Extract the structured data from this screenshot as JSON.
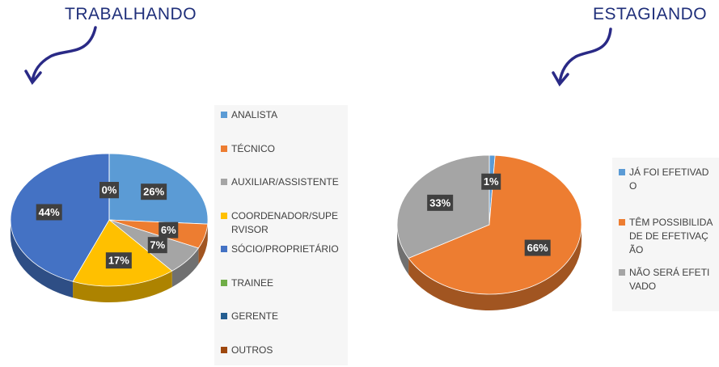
{
  "chart_data": [
    {
      "type": "pie",
      "title": "TRABALHANDO",
      "categories": [
        "ANALISTA",
        "TÉCNICO",
        "AUXILIAR/ASSISTENTE",
        "COORDENADOR/SUPERVISOR",
        "SÓCIO/PROPRIETÁRIO",
        "TRAINEE",
        "GERENTE",
        "OUTROS"
      ],
      "values": [
        26,
        6,
        7,
        17,
        44,
        0,
        0,
        0
      ],
      "value_labels": [
        "26%",
        "6%",
        "7%",
        "17%",
        "44%",
        "0%",
        "0%",
        "0%"
      ],
      "colors": [
        "#5b9bd5",
        "#ed7d31",
        "#a5a5a5",
        "#ffc000",
        "#4472c4",
        "#70ad47",
        "#255e91",
        "#9e480e"
      ]
    },
    {
      "type": "pie",
      "title": "ESTAGIANDO",
      "categories": [
        "JÁ FOI EFETIVADO",
        "TÊM POSSIBILIDADE DE EFETIVAÇÃO",
        "NÃO SERÁ EFETIVADO"
      ],
      "values": [
        1,
        66,
        33
      ],
      "value_labels": [
        "1%",
        "66%",
        "33%"
      ],
      "colors": [
        "#5b9bd5",
        "#ed7d31",
        "#a5a5a5"
      ]
    }
  ]
}
